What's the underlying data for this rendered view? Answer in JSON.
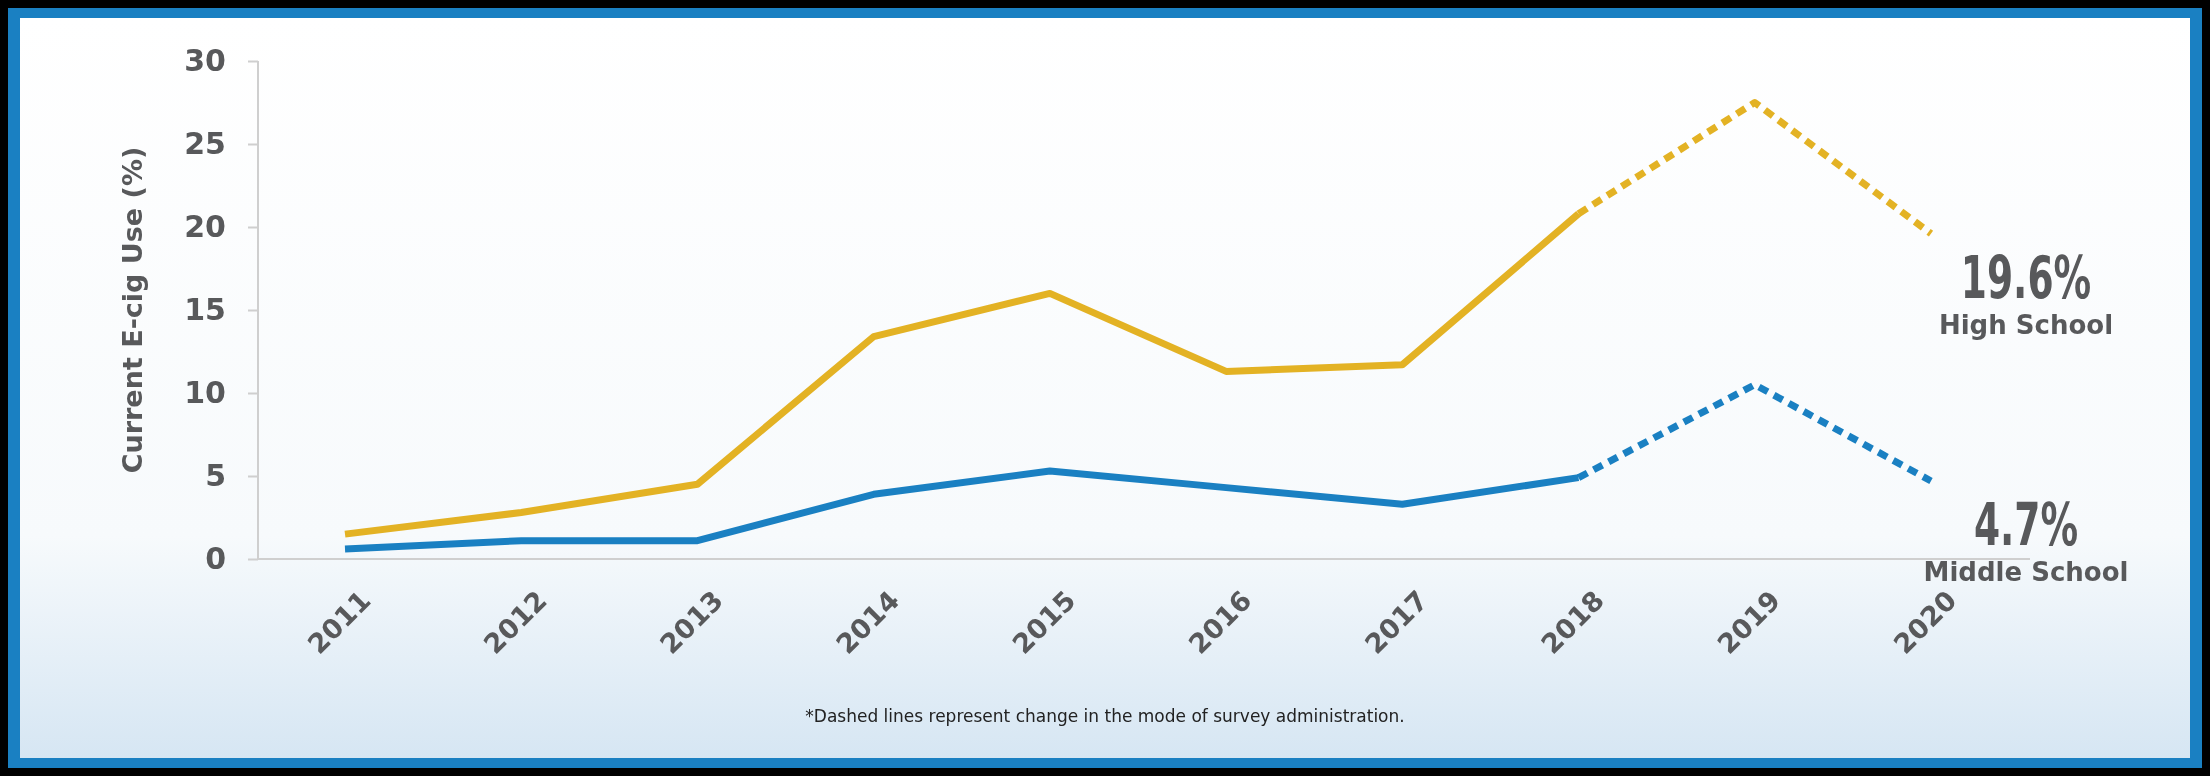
{
  "chart_data": {
    "type": "line",
    "ylabel": "Current E-cig Use (%)",
    "categories": [
      "2011",
      "2012",
      "2013",
      "2014",
      "2015",
      "2016",
      "2017",
      "2018",
      "2019",
      "2020"
    ],
    "series": [
      {
        "color": "#e3b224",
        "line_style": "solid",
        "values": [
          1.5,
          2.8,
          4.5,
          13.4,
          16.0,
          11.3,
          11.7,
          20.8,
          null,
          null
        ]
      },
      {
        "name": "High School",
        "color": "#e3b224",
        "line_style": "dotted",
        "values": [
          null,
          null,
          null,
          null,
          null,
          null,
          null,
          20.8,
          27.5,
          19.6
        ],
        "value_labels": [
          null,
          null,
          null,
          null,
          null,
          null,
          null,
          null,
          null,
          "19.6%"
        ]
      },
      {
        "color": "#1a80c2",
        "line_style": "solid",
        "values": [
          0.6,
          1.1,
          1.1,
          3.9,
          5.3,
          4.3,
          3.3,
          4.9,
          null,
          null
        ]
      },
      {
        "name": "Middle School",
        "color": "#1a80c2",
        "line_style": "dotted",
        "values": [
          null,
          null,
          null,
          null,
          null,
          null,
          null,
          4.9,
          10.5,
          4.7
        ],
        "value_labels": [
          null,
          null,
          null,
          null,
          null,
          null,
          null,
          null,
          null,
          "4.7%"
        ]
      }
    ],
    "ylim": [
      0,
      30
    ],
    "yticks": [
      0,
      5,
      10,
      15,
      20,
      25,
      30
    ],
    "grid": false,
    "annotations": [
      "*Dashed lines represent change in the mode of survey administration."
    ]
  }
}
